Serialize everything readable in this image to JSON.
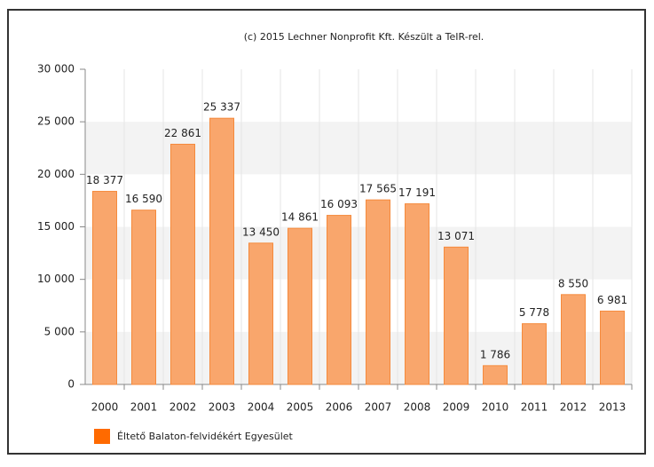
{
  "chart_data": {
    "type": "bar",
    "title": "(c) 2015 Lechner Nonprofit Kft. Készült a TeIR-rel.",
    "categories": [
      "2000",
      "2001",
      "2002",
      "2003",
      "2004",
      "2005",
      "2006",
      "2007",
      "2008",
      "2009",
      "2010",
      "2011",
      "2012",
      "2013"
    ],
    "series": [
      {
        "name": "Éltető Balaton-felvidékért Egyesület",
        "color": "#f9a66c",
        "legend_color": "#ff6a00",
        "values": [
          18377,
          16590,
          22861,
          25337,
          13450,
          14861,
          16093,
          17565,
          17191,
          13071,
          1786,
          5778,
          8550,
          6981
        ],
        "value_labels": [
          "18 377",
          "16 590",
          "22 861",
          "25 337",
          "13 450",
          "14 861",
          "16 093",
          "17 565",
          "17 191",
          "13 071",
          "1 786",
          "5 778",
          "8 550",
          "6 981"
        ]
      }
    ],
    "ylim": [
      0,
      30000
    ],
    "yticks": [
      0,
      {
        "value": 5000,
        "label": "5 000"
      },
      {
        "value": 10000,
        "label": "10 000"
      },
      {
        "value": 15000,
        "label": "15 000"
      },
      {
        "value": 20000,
        "label": "20 000"
      },
      {
        "value": 25000,
        "label": "25 000"
      },
      {
        "value": 30000,
        "label": "30 000"
      }
    ],
    "grid": true
  }
}
